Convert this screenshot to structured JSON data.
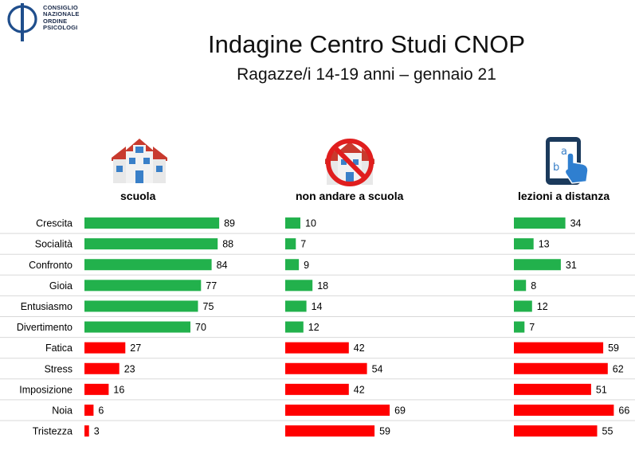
{
  "logo": {
    "lines": [
      "CONSIGLIO",
      "NAZIONALE",
      "ORDINE",
      "PSICOLOGI"
    ],
    "color": "#1f4e8c"
  },
  "header": {
    "title": "Indagine Centro Studi CNOP",
    "subtitle": "Ragazze/i 14-19 anni – gennaio 21"
  },
  "columns": [
    {
      "label": "scuola",
      "icon": "school-building-icon"
    },
    {
      "label": "non andare a scuola",
      "icon": "no-school-icon"
    },
    {
      "label": "lezioni a distanza",
      "icon": "tablet-touch-icon"
    }
  ],
  "colors": {
    "positive": "#22b14c",
    "negative": "#ff0000",
    "divider": "#d9d9d9"
  },
  "chart_data": {
    "type": "bar",
    "orientation": "horizontal",
    "categories": [
      "Crescita",
      "Socialità",
      "Confronto",
      "Gioia",
      "Entusiasmo",
      "Divertimento",
      "Fatica",
      "Stress",
      "Imposizione",
      "Noia",
      "Tristezza"
    ],
    "series": [
      {
        "name": "scuola",
        "values": [
          89,
          88,
          84,
          77,
          75,
          70,
          27,
          23,
          16,
          6,
          3
        ]
      },
      {
        "name": "non andare a scuola",
        "values": [
          10,
          7,
          9,
          18,
          14,
          12,
          42,
          54,
          42,
          69,
          59
        ]
      },
      {
        "name": "lezioni a distanza",
        "values": [
          34,
          13,
          31,
          8,
          12,
          7,
          59,
          62,
          51,
          66,
          55
        ]
      }
    ],
    "positive_categories": [
      "Crescita",
      "Socialità",
      "Confronto",
      "Gioia",
      "Entusiasmo",
      "Divertimento"
    ],
    "negative_categories": [
      "Fatica",
      "Stress",
      "Imposizione",
      "Noia",
      "Tristezza"
    ],
    "xlim": [
      0,
      100
    ],
    "grid": false,
    "legend": "none"
  }
}
